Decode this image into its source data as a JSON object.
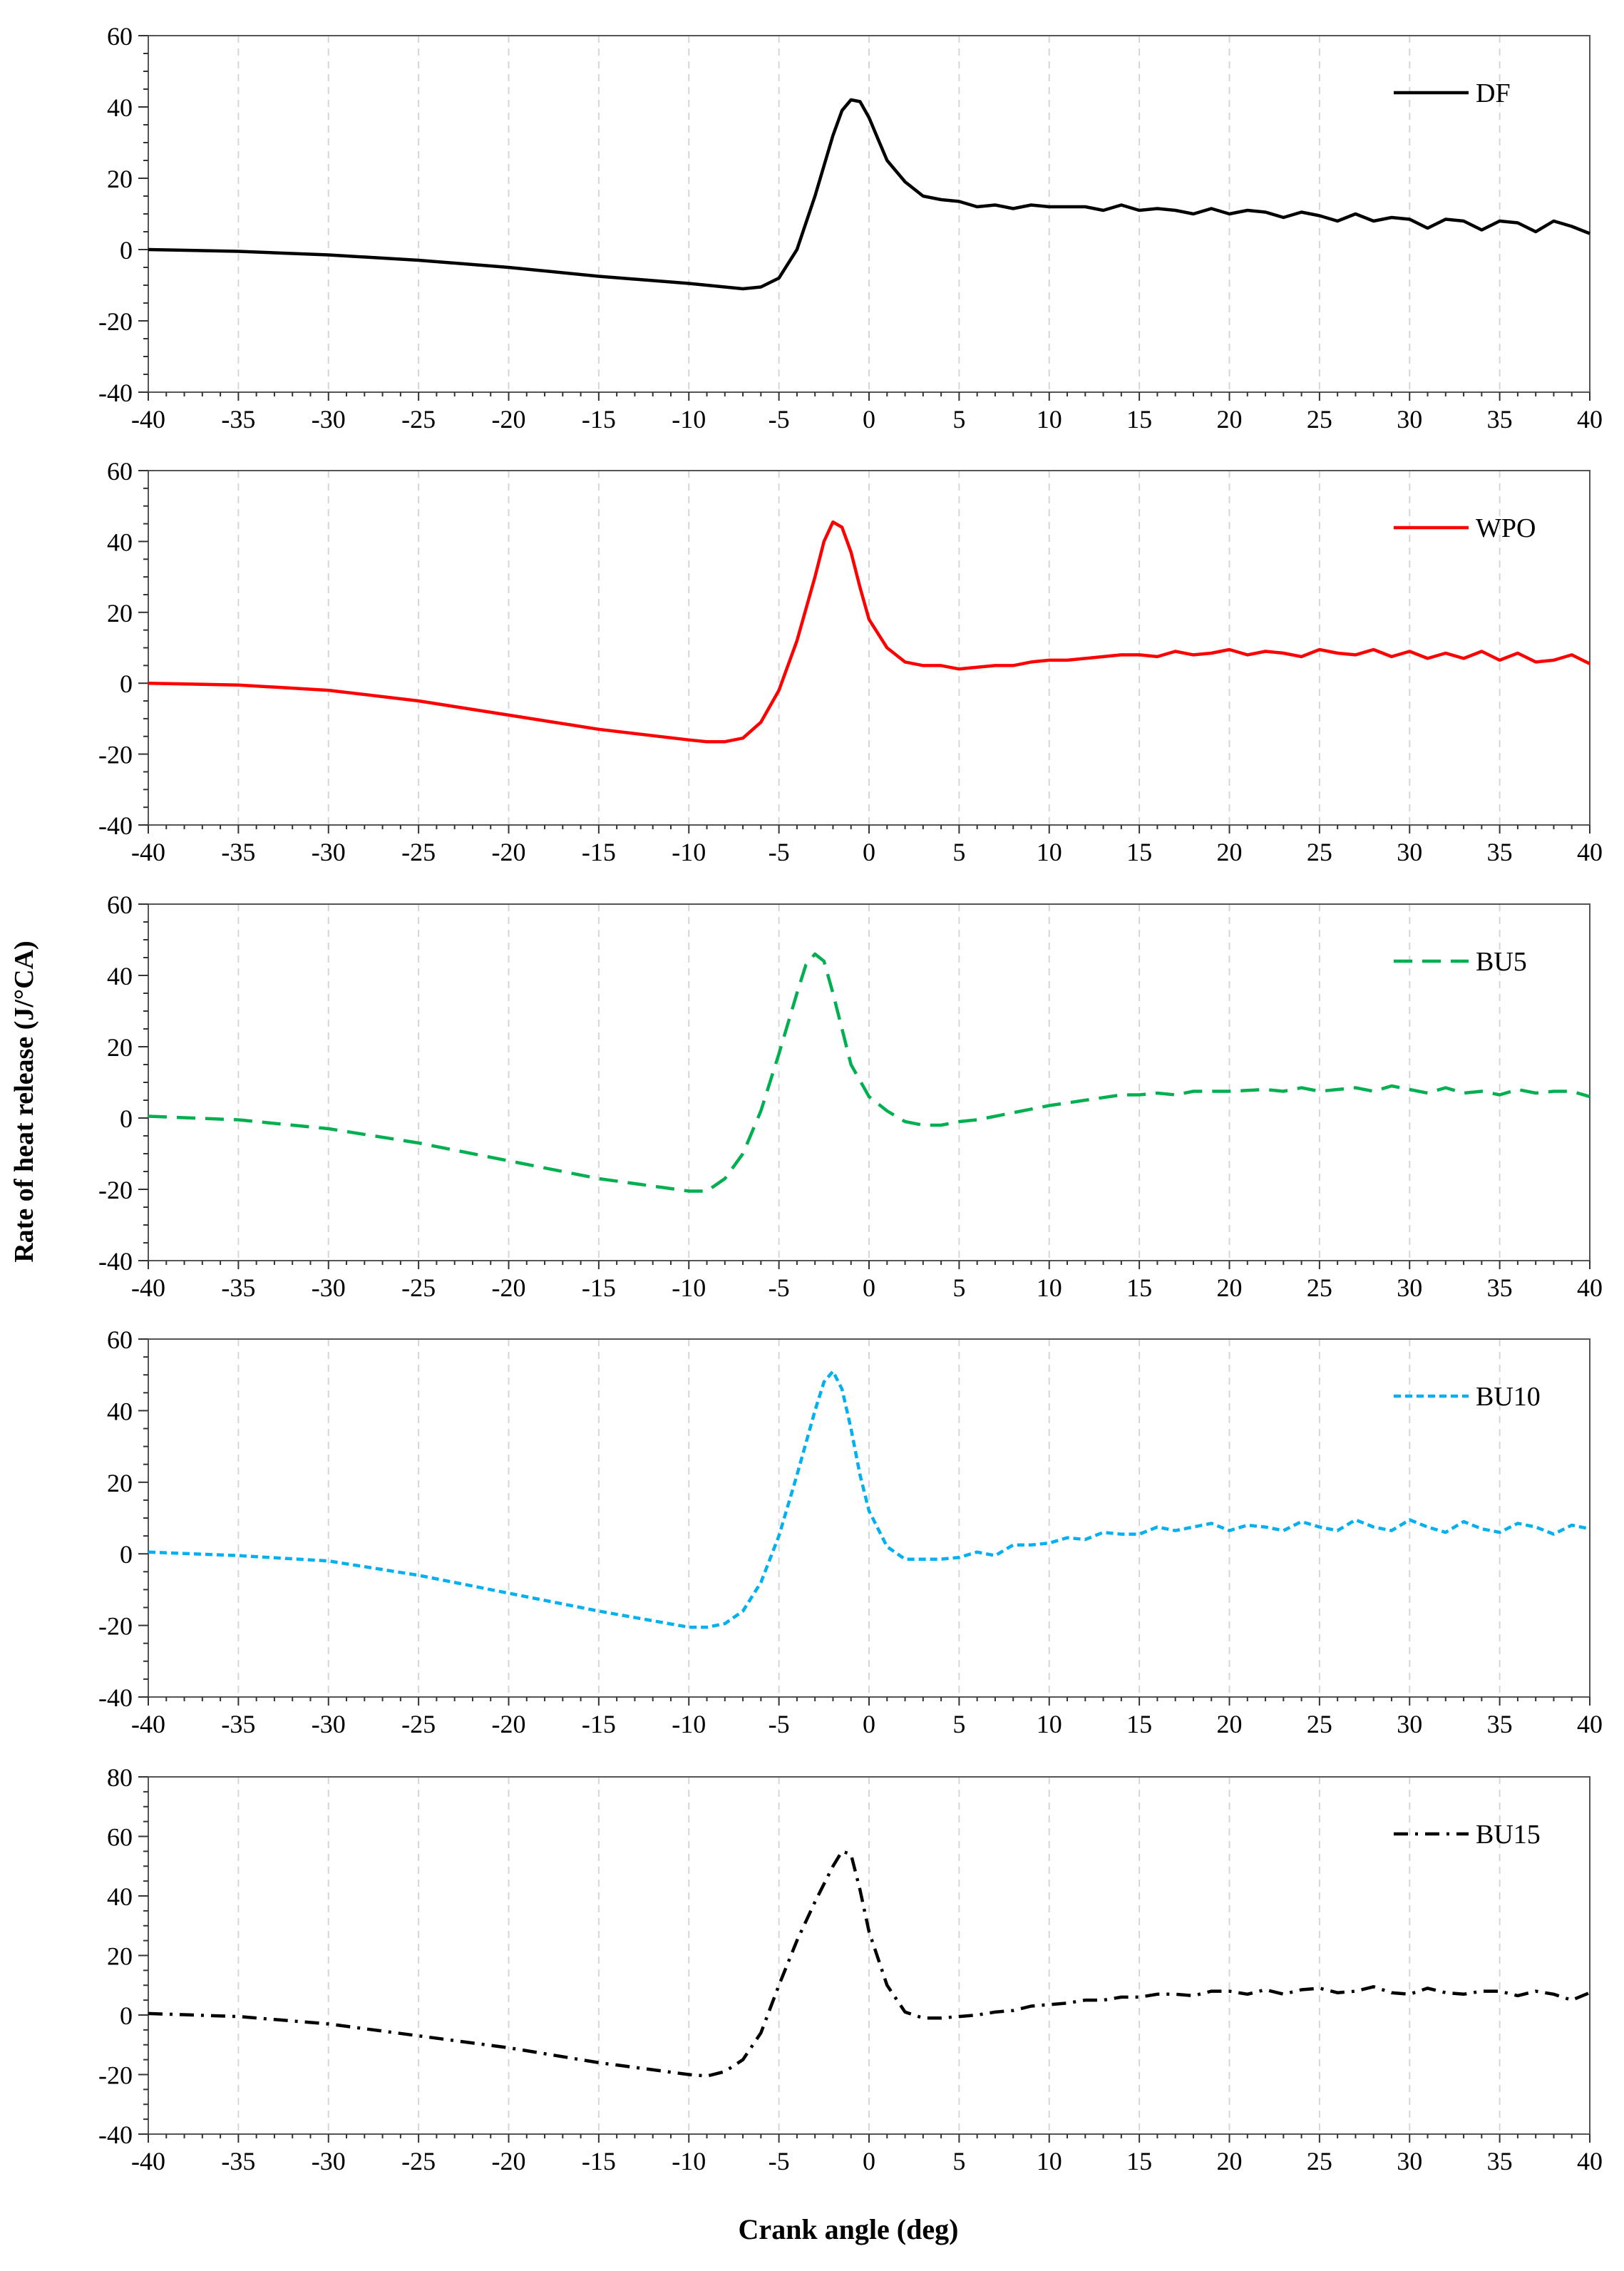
{
  "figure": {
    "ylabel": "Rate of heat release (J/°CA)",
    "xlabel": "Crank angle (deg)"
  },
  "chart_data": [
    {
      "type": "line",
      "legend": "DF",
      "legend_position": "top-right",
      "color": "#000000",
      "line_style": "solid",
      "xlim": [
        -40,
        40
      ],
      "ylim": [
        -40,
        60
      ],
      "xticks": [
        -40,
        -35,
        -30,
        -25,
        -20,
        -15,
        -10,
        -5,
        0,
        5,
        10,
        15,
        20,
        25,
        30,
        35,
        40
      ],
      "yticks": [
        -40,
        -20,
        0,
        20,
        40,
        60
      ],
      "x": [
        -40,
        -35,
        -30,
        -25,
        -20,
        -15,
        -10,
        -8,
        -7,
        -6,
        -5,
        -4,
        -3,
        -2,
        -1.5,
        -1,
        -0.5,
        0,
        0.5,
        1,
        2,
        3,
        4,
        5,
        6,
        7,
        8,
        9,
        10,
        11,
        12,
        13,
        14,
        15,
        16,
        17,
        18,
        19,
        20,
        21,
        22,
        23,
        24,
        25,
        26,
        27,
        28,
        29,
        30,
        31,
        32,
        33,
        34,
        35,
        36,
        37,
        38,
        39,
        40
      ],
      "y": [
        0,
        -0.5,
        -1.5,
        -3,
        -5,
        -7.5,
        -9.5,
        -10.5,
        -11,
        -10.5,
        -8,
        0,
        15,
        32,
        39,
        42,
        41.5,
        37,
        31,
        25,
        19,
        15,
        14,
        13.5,
        12,
        12.5,
        11.5,
        12.5,
        12,
        12,
        12,
        11,
        12.5,
        11,
        11.5,
        11,
        10,
        11.5,
        10,
        11,
        10.5,
        9,
        10.5,
        9.5,
        8,
        10,
        8,
        9,
        8.5,
        6,
        8.5,
        8,
        5.5,
        8,
        7.5,
        5,
        8,
        6.5,
        4.5
      ]
    },
    {
      "type": "line",
      "legend": "WPO",
      "legend_position": "top-right",
      "color": "#ff0000",
      "line_style": "solid",
      "xlim": [
        -40,
        40
      ],
      "ylim": [
        -40,
        60
      ],
      "xticks": [
        -40,
        -35,
        -30,
        -25,
        -20,
        -15,
        -10,
        -5,
        0,
        5,
        10,
        15,
        20,
        25,
        30,
        35,
        40
      ],
      "yticks": [
        -40,
        -20,
        0,
        20,
        40,
        60
      ],
      "x": [
        -40,
        -35,
        -30,
        -25,
        -20,
        -15,
        -10,
        -9,
        -8,
        -7,
        -6,
        -5,
        -4,
        -3,
        -2.5,
        -2,
        -1.5,
        -1,
        -0.5,
        0,
        1,
        2,
        3,
        4,
        5,
        6,
        7,
        8,
        9,
        10,
        11,
        12,
        13,
        14,
        15,
        16,
        17,
        18,
        19,
        20,
        21,
        22,
        23,
        24,
        25,
        26,
        27,
        28,
        29,
        30,
        31,
        32,
        33,
        34,
        35,
        36,
        37,
        38,
        39,
        40
      ],
      "y": [
        0,
        -0.5,
        -2,
        -5,
        -9,
        -13,
        -16,
        -16.5,
        -16.5,
        -15.5,
        -11,
        -2,
        12,
        30,
        40,
        45.5,
        44,
        37,
        27,
        18,
        10,
        6,
        5,
        5,
        4,
        4.5,
        5,
        5,
        6,
        6.5,
        6.5,
        7,
        7.5,
        8,
        8,
        7.5,
        9,
        8,
        8.5,
        9.5,
        8,
        9,
        8.5,
        7.5,
        9.5,
        8.5,
        8,
        9.5,
        7.5,
        9,
        7,
        8.5,
        7,
        9,
        6.5,
        8.5,
        6,
        6.5,
        8,
        5.5
      ]
    },
    {
      "type": "line",
      "legend": "BU5",
      "legend_position": "top-right",
      "color": "#00b050",
      "line_style": "dashed",
      "xlim": [
        -40,
        40
      ],
      "ylim": [
        -40,
        60
      ],
      "xticks": [
        -40,
        -35,
        -30,
        -25,
        -20,
        -15,
        -10,
        -5,
        0,
        5,
        10,
        15,
        20,
        25,
        30,
        35,
        40
      ],
      "yticks": [
        -40,
        -20,
        0,
        20,
        40,
        60
      ],
      "x": [
        -40,
        -35,
        -30,
        -25,
        -20,
        -15,
        -10,
        -9,
        -8,
        -7,
        -6,
        -5,
        -4,
        -3.5,
        -3,
        -2.5,
        -2,
        -1.5,
        -1,
        0,
        1,
        2,
        3,
        4,
        5,
        6,
        7,
        8,
        10,
        12,
        14,
        15,
        16,
        17,
        18,
        20,
        22,
        23,
        24,
        25,
        26,
        27,
        28,
        29,
        30,
        31,
        32,
        33,
        34,
        35,
        36,
        37,
        38,
        39,
        40
      ],
      "y": [
        0.5,
        -0.5,
        -3,
        -7,
        -12,
        -17,
        -20.5,
        -20.5,
        -17,
        -10,
        2,
        18,
        35,
        43,
        46,
        44,
        35,
        25,
        15,
        6,
        2,
        -1,
        -2,
        -2,
        -1,
        -0.5,
        0.5,
        1.5,
        3.5,
        5,
        6.5,
        6.5,
        7,
        6.5,
        7.5,
        7.5,
        8,
        7.5,
        8.5,
        7.5,
        8,
        8.5,
        7.5,
        9,
        8,
        7,
        8.5,
        7,
        7.5,
        6.5,
        8,
        7,
        7.5,
        7.5,
        6
      ]
    },
    {
      "type": "line",
      "legend": "BU10",
      "legend_position": "top-right",
      "color": "#00b0f0",
      "line_style": "dotted",
      "xlim": [
        -40,
        40
      ],
      "ylim": [
        -40,
        60
      ],
      "xticks": [
        -40,
        -35,
        -30,
        -25,
        -20,
        -15,
        -10,
        -5,
        0,
        5,
        10,
        15,
        20,
        25,
        30,
        35,
        40
      ],
      "yticks": [
        -40,
        -20,
        0,
        20,
        40,
        60
      ],
      "x": [
        -40,
        -35,
        -30,
        -25,
        -20,
        -15,
        -10,
        -9,
        -8,
        -7,
        -6,
        -5,
        -4,
        -3,
        -2.5,
        -2,
        -1.5,
        -1,
        -0.5,
        0,
        1,
        2,
        3,
        4,
        5,
        6,
        7,
        8,
        9,
        10,
        11,
        12,
        13,
        14,
        15,
        16,
        17,
        18,
        19,
        20,
        21,
        22,
        23,
        24,
        25,
        26,
        27,
        28,
        29,
        30,
        31,
        32,
        33,
        34,
        35,
        36,
        37,
        38,
        39,
        40
      ],
      "y": [
        0.5,
        -0.5,
        -2,
        -6,
        -11,
        -16,
        -20.5,
        -20.5,
        -19.5,
        -16,
        -8,
        5,
        22,
        40,
        48,
        51,
        46,
        35,
        22,
        12,
        2,
        -1.5,
        -1.5,
        -1.5,
        -1,
        0.5,
        -0.5,
        2.5,
        2.5,
        3,
        4.5,
        4,
        6,
        5.5,
        5.5,
        7.5,
        6.5,
        7.5,
        8.5,
        6.5,
        8,
        7.5,
        6.5,
        9,
        7.5,
        6.5,
        9.5,
        7.5,
        6.5,
        9.5,
        7.5,
        6,
        9,
        7,
        6,
        8.5,
        7.5,
        5.5,
        8,
        7
      ]
    },
    {
      "type": "line",
      "legend": "BU15",
      "legend_position": "top-right",
      "color": "#000000",
      "line_style": "dash-dot",
      "xlim": [
        -40,
        40
      ],
      "ylim": [
        -40,
        80
      ],
      "xticks": [
        -40,
        -35,
        -30,
        -25,
        -20,
        -15,
        -10,
        -5,
        0,
        5,
        10,
        15,
        20,
        25,
        30,
        35,
        40
      ],
      "yticks": [
        -40,
        -20,
        0,
        20,
        40,
        60,
        80
      ],
      "x": [
        -40,
        -35,
        -30,
        -25,
        -20,
        -15,
        -10,
        -9,
        -8,
        -7,
        -6,
        -5,
        -4,
        -3,
        -2,
        -1.5,
        -1,
        -0.5,
        0,
        1,
        2,
        3,
        4,
        5,
        6,
        7,
        8,
        9,
        10,
        11,
        12,
        13,
        14,
        15,
        16,
        17,
        18,
        19,
        20,
        21,
        22,
        23,
        24,
        25,
        26,
        27,
        28,
        29,
        30,
        31,
        32,
        33,
        34,
        35,
        36,
        37,
        38,
        39,
        40
      ],
      "y": [
        0.5,
        -0.5,
        -3,
        -7,
        -11,
        -16,
        -20,
        -20.5,
        -19,
        -15,
        -6,
        10,
        25,
        38,
        50,
        55,
        54,
        42,
        28,
        10,
        1,
        -1,
        -1,
        -0.5,
        0,
        1,
        1.5,
        3,
        3.5,
        4,
        5,
        5,
        6,
        6,
        7,
        7,
        6.5,
        8,
        8,
        7,
        8.5,
        7,
        8.5,
        9,
        7.5,
        8,
        9.5,
        7.5,
        7,
        9,
        7.5,
        7,
        8,
        8,
        6.5,
        8,
        7,
        5,
        7.5
      ]
    }
  ]
}
